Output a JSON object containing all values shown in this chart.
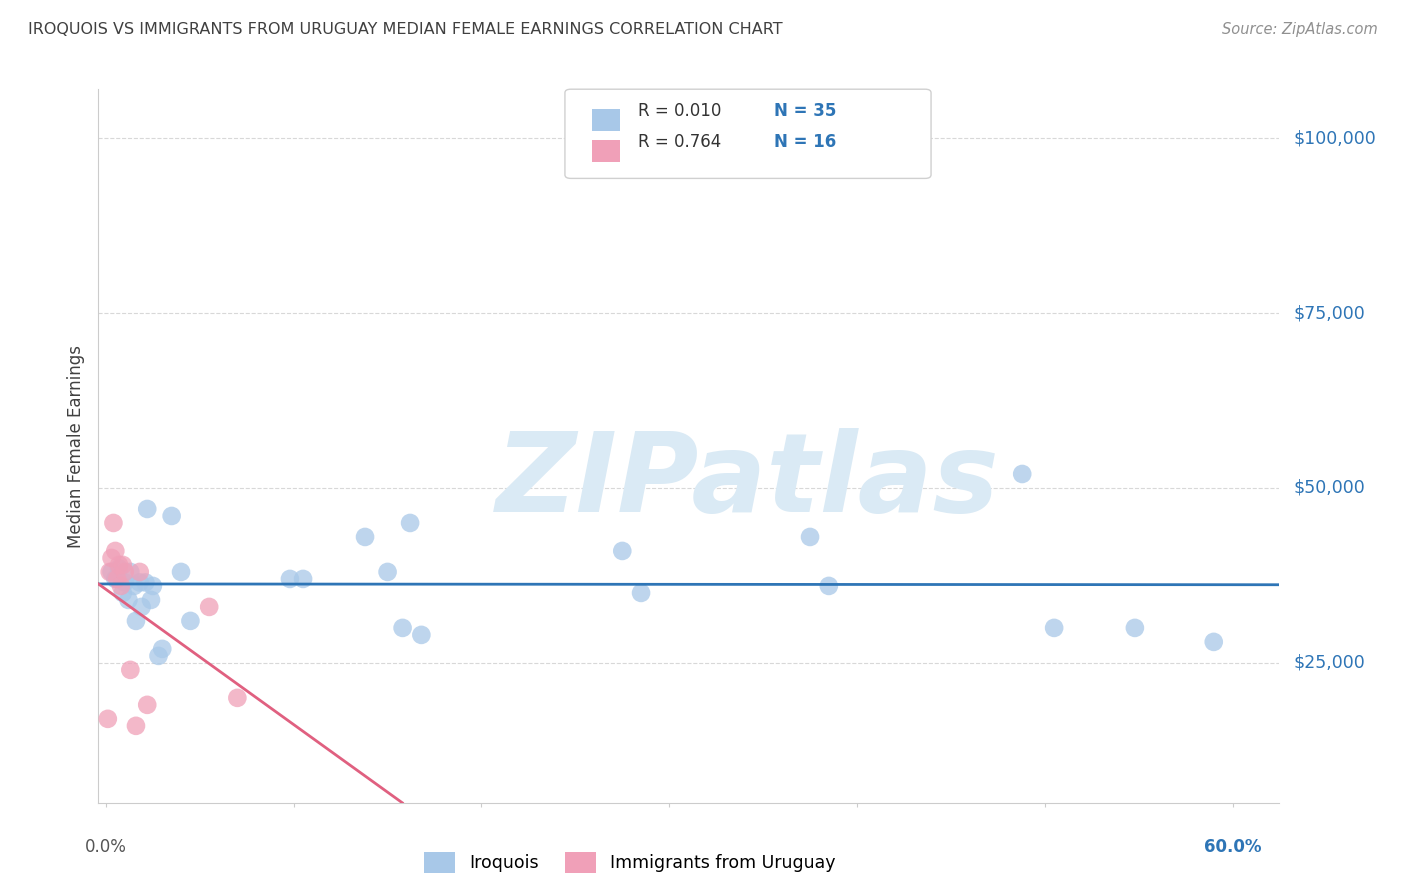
{
  "title": "IROQUOIS VS IMMIGRANTS FROM URUGUAY MEDIAN FEMALE EARNINGS CORRELATION CHART",
  "source": "Source: ZipAtlas.com",
  "ylabel": "Median Female Earnings",
  "ytick_labels": [
    "$25,000",
    "$50,000",
    "$75,000",
    "$100,000"
  ],
  "ytick_values": [
    25000,
    50000,
    75000,
    100000
  ],
  "ymin": 5000,
  "ymax": 107000,
  "xmin": -0.004,
  "xmax": 0.625,
  "legend_label1": "Iroquois",
  "legend_label2": "Immigrants from Uruguay",
  "R1": "0.010",
  "N1": "35",
  "R2": "0.764",
  "N2": "16",
  "blue_color": "#a8c8e8",
  "pink_color": "#f0a0b8",
  "blue_line_color": "#2e75b6",
  "pink_line_color": "#e06080",
  "title_color": "#404040",
  "source_color": "#909090",
  "axis_label_color": "#2e75b6",
  "watermark_color": "#daeaf5",
  "iroquois_x": [
    0.003,
    0.005,
    0.007,
    0.009,
    0.01,
    0.012,
    0.013,
    0.015,
    0.016,
    0.018,
    0.019,
    0.021,
    0.022,
    0.024,
    0.025,
    0.028,
    0.03,
    0.035,
    0.04,
    0.045,
    0.098,
    0.105,
    0.138,
    0.15,
    0.158,
    0.162,
    0.168,
    0.275,
    0.285,
    0.375,
    0.385,
    0.488,
    0.505,
    0.548,
    0.59
  ],
  "iroquois_y": [
    38000,
    37000,
    38500,
    35000,
    36500,
    34000,
    38000,
    36000,
    31000,
    36500,
    33000,
    36500,
    47000,
    34000,
    36000,
    26000,
    27000,
    46000,
    38000,
    31000,
    37000,
    37000,
    43000,
    38000,
    30000,
    45000,
    29000,
    41000,
    35000,
    43000,
    36000,
    52000,
    30000,
    30000,
    28000
  ],
  "uruguay_x": [
    0.001,
    0.002,
    0.003,
    0.004,
    0.005,
    0.006,
    0.007,
    0.008,
    0.009,
    0.01,
    0.013,
    0.016,
    0.018,
    0.022,
    0.055,
    0.07
  ],
  "uruguay_y": [
    17000,
    38000,
    40000,
    45000,
    41000,
    37000,
    39000,
    36000,
    39000,
    38000,
    24000,
    16000,
    38000,
    19000,
    33000,
    20000
  ],
  "background_color": "#ffffff",
  "grid_color": "#d8d8d8"
}
